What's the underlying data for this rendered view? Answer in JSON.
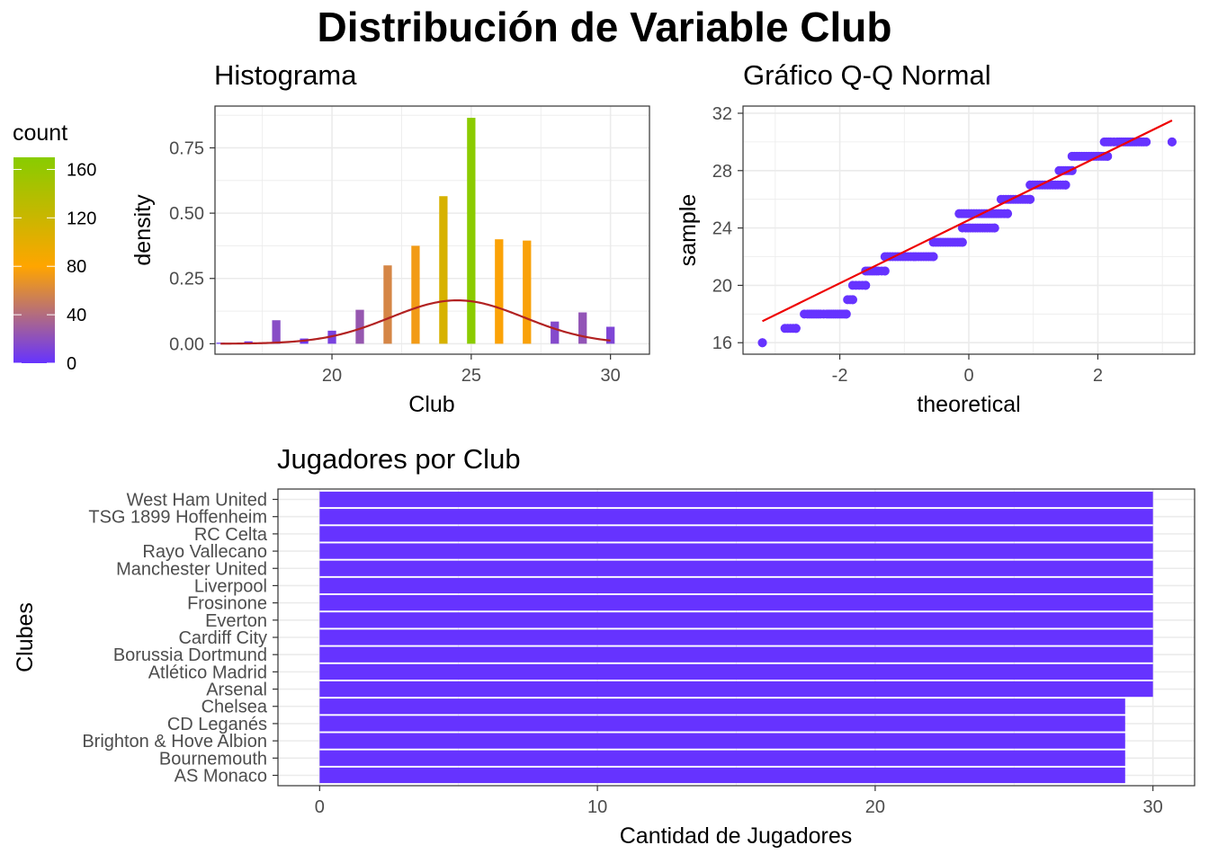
{
  "title": "Distribución de Variable Club",
  "colors": {
    "grid": "#ebebeb",
    "panel_border": "#333333",
    "tick_text": "#4d4d4d",
    "density_line": "#b22222",
    "qq_points": "#6633ff",
    "qq_line": "#ee0000",
    "bar_fill": "#6633ff",
    "gradient_low": "#6633ff",
    "gradient_mid": "#ffa500",
    "gradient_high": "#88cc00"
  },
  "legend": {
    "title": "count",
    "ticks": [
      "0",
      "40",
      "80",
      "120",
      "160"
    ],
    "values": [
      0,
      40,
      80,
      120,
      160
    ],
    "max": 170
  },
  "chart_data": [
    {
      "type": "bar",
      "title": "Histograma",
      "xlabel": "Club",
      "ylabel": "density",
      "xlim": [
        15.8,
        31.4
      ],
      "ylim": [
        -0.04,
        0.91
      ],
      "xticks": [
        20,
        25,
        30
      ],
      "xtick_labels": [
        "20",
        "25",
        "30"
      ],
      "yticks": [
        0,
        0.25,
        0.5,
        0.75
      ],
      "ytick_labels": [
        "0.00",
        "0.25",
        "0.50",
        "0.75"
      ],
      "bin_width": 0.3,
      "bars": [
        {
          "x": 16,
          "density": 0.004,
          "count": 1
        },
        {
          "x": 17,
          "density": 0.009,
          "count": 2
        },
        {
          "x": 18,
          "density": 0.09,
          "count": 18
        },
        {
          "x": 19,
          "density": 0.02,
          "count": 4
        },
        {
          "x": 20,
          "density": 0.05,
          "count": 10
        },
        {
          "x": 21,
          "density": 0.13,
          "count": 25
        },
        {
          "x": 22,
          "density": 0.3,
          "count": 58
        },
        {
          "x": 23,
          "density": 0.375,
          "count": 73
        },
        {
          "x": 24,
          "density": 0.565,
          "count": 110
        },
        {
          "x": 25,
          "density": 0.865,
          "count": 168
        },
        {
          "x": 26,
          "density": 0.4,
          "count": 78
        },
        {
          "x": 27,
          "density": 0.395,
          "count": 77
        },
        {
          "x": 28,
          "density": 0.085,
          "count": 16
        },
        {
          "x": 29,
          "density": 0.12,
          "count": 23
        },
        {
          "x": 30,
          "density": 0.065,
          "count": 13
        }
      ],
      "density_curve": {
        "mean": 24.5,
        "sd": 2.4
      }
    },
    {
      "type": "scatter",
      "title": "Gráfico Q-Q Normal",
      "xlabel": "theoretical",
      "ylabel": "sample",
      "xlim": [
        -3.5,
        3.5
      ],
      "ylim": [
        15.2,
        32.5
      ],
      "xticks": [
        -2,
        0,
        2
      ],
      "xtick_labels": [
        "-2",
        "0",
        "2"
      ],
      "yticks": [
        16,
        20,
        24,
        28,
        32
      ],
      "ytick_labels": [
        "16",
        "20",
        "24",
        "28",
        "32"
      ],
      "points": [
        {
          "y": 16,
          "x": [
            -3.2
          ]
        },
        {
          "y": 17,
          "x": [
            -2.85,
            -2.68
          ]
        },
        {
          "y": 18,
          "x": [
            -2.55,
            -2.5,
            -2.4,
            -2.3,
            -2.2,
            -2.1,
            -2.0,
            -1.9
          ]
        },
        {
          "y": 19,
          "x": [
            -1.88,
            -1.8
          ]
        },
        {
          "y": 20,
          "x": [
            -1.8,
            -1.75,
            -1.7,
            -1.65,
            -1.6
          ]
        },
        {
          "y": 21,
          "x": [
            -1.6,
            -1.5,
            -1.4,
            -1.3
          ]
        },
        {
          "y": 22,
          "x": [
            -1.3,
            -1.1,
            -0.9,
            -0.7,
            -0.55
          ]
        },
        {
          "y": 23,
          "x": [
            -0.55,
            -0.4,
            -0.25,
            -0.1
          ]
        },
        {
          "y": 24,
          "x": [
            -0.1,
            0.1,
            0.25,
            0.4,
            -0.05
          ]
        },
        {
          "y": 25,
          "x": [
            -0.15,
            0.0,
            0.2,
            0.35,
            0.5,
            0.6
          ]
        },
        {
          "y": 26,
          "x": [
            0.5,
            0.65,
            0.8,
            0.95
          ]
        },
        {
          "y": 27,
          "x": [
            0.95,
            1.1,
            1.3,
            1.5
          ]
        },
        {
          "y": 28,
          "x": [
            1.4,
            1.5,
            1.6
          ]
        },
        {
          "y": 29,
          "x": [
            1.6,
            1.75,
            1.9,
            2.05,
            2.15
          ]
        },
        {
          "y": 30,
          "x": [
            2.1,
            2.2,
            2.3,
            2.4,
            2.5,
            2.6,
            2.75,
            3.15
          ]
        }
      ],
      "reference_line": {
        "x": [
          -3.2,
          3.15
        ],
        "y": [
          17.5,
          31.5
        ]
      }
    },
    {
      "type": "bar",
      "orientation": "horizontal",
      "title": "Jugadores por Club",
      "xlabel": "Cantidad de Jugadores",
      "ylabel": "Clubes",
      "xlim": [
        -1.5,
        31.5
      ],
      "xticks": [
        0,
        10,
        20,
        30
      ],
      "xtick_labels": [
        "0",
        "10",
        "20",
        "30"
      ],
      "categories": [
        "West Ham United",
        "TSG 1899 Hoffenheim",
        "RC Celta",
        "Rayo Vallecano",
        "Manchester United",
        "Liverpool",
        "Frosinone",
        "Everton",
        "Cardiff City",
        "Borussia Dortmund",
        "Atlético Madrid",
        "Arsenal",
        "Chelsea",
        "CD Leganés",
        "Brighton & Hove Albion",
        "Bournemouth",
        "AS Monaco"
      ],
      "values": [
        30,
        30,
        30,
        30,
        30,
        30,
        30,
        30,
        30,
        30,
        30,
        30,
        29,
        29,
        29,
        29,
        29
      ]
    }
  ]
}
